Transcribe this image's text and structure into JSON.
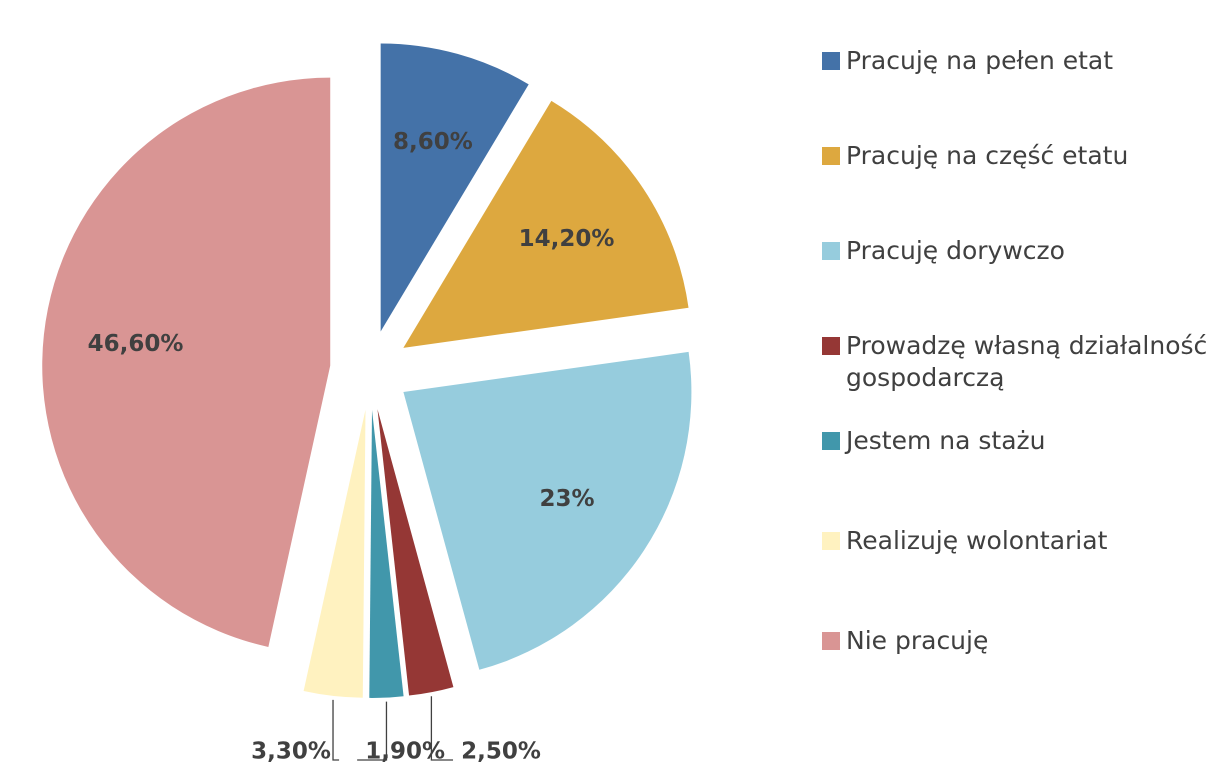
{
  "chart_data": {
    "type": "pie",
    "categories": [
      "Pracuję na pełen etat",
      "Pracuję na część etatu",
      "Pracuję dorywczo",
      "Prowadzę własną działalność gospodarczą",
      "Jestem na stażu",
      "Realizuję wolontariat",
      "Nie pracuję"
    ],
    "values": [
      8.6,
      14.2,
      23,
      2.5,
      1.9,
      3.3,
      46.6
    ],
    "value_labels": [
      "8,60%",
      "14,20%",
      "23%",
      "2,50%",
      "1,90%",
      "3,30%",
      "46,60%"
    ],
    "colors": [
      "#4472a8",
      "#dda83f",
      "#96ccdd",
      "#953735",
      "#4197ab",
      "#fff2c0",
      "#d99594"
    ],
    "legend": "right"
  }
}
